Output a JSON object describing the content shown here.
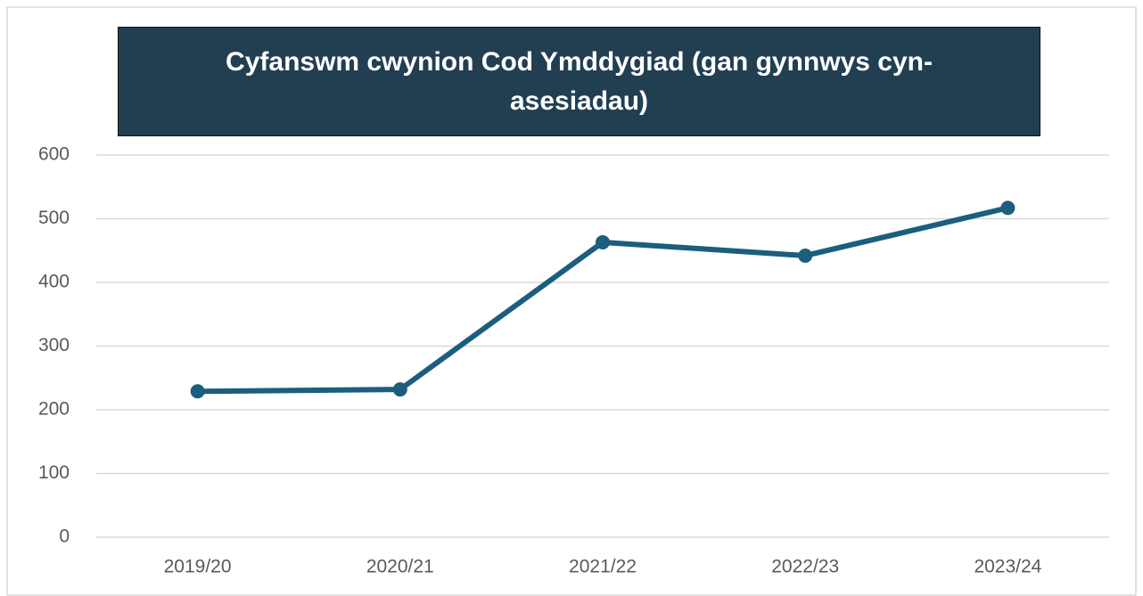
{
  "chart_data": {
    "type": "line",
    "title": "Cyfanswm cwynion Cod Ymddygiad (gan gynnwys cyn-asesiadau)",
    "categories": [
      "2019/20",
      "2020/21",
      "2021/22",
      "2022/23",
      "2023/24"
    ],
    "values": [
      229,
      232,
      463,
      442,
      517
    ],
    "color": "#1b5e7e",
    "ylim": [
      0,
      600
    ],
    "yticks": [
      0,
      100,
      200,
      300,
      400,
      500,
      600
    ],
    "grid": true
  }
}
